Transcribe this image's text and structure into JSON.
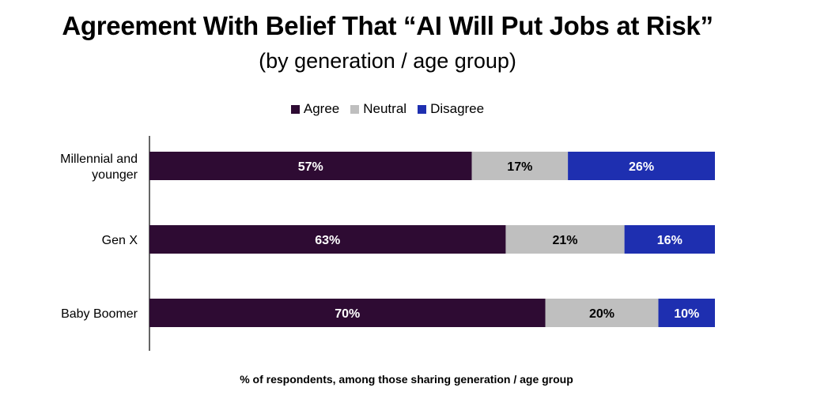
{
  "chart_data": {
    "type": "bar",
    "orientation": "horizontal",
    "stacked": true,
    "title": "Agreement With Belief That “AI Will Put Jobs at Risk”",
    "subtitle": "(by generation / age group)",
    "xlabel": "% of respondents, among those sharing generation / age group",
    "ylabel": "",
    "legend_position": "top",
    "categories": [
      "Millennial and younger",
      "Gen X",
      "Baby Boomer"
    ],
    "category_lines": [
      [
        "Millennial and",
        "younger"
      ],
      [
        "Gen X"
      ],
      [
        "Baby Boomer"
      ]
    ],
    "xlim": [
      0,
      100
    ],
    "series": [
      {
        "name": "Agree",
        "color": "#2e0b33",
        "label_color": "#ffffff",
        "values": [
          57,
          63,
          70
        ],
        "labels": [
          "57%",
          "63%",
          "70%"
        ]
      },
      {
        "name": "Neutral",
        "color": "#bfbfbf",
        "label_color": "#000000",
        "values": [
          17,
          21,
          20
        ],
        "labels": [
          "17%",
          "21%",
          "20%"
        ]
      },
      {
        "name": "Disagree",
        "color": "#1e2fb0",
        "label_color": "#ffffff",
        "values": [
          26,
          16,
          10
        ],
        "labels": [
          "26%",
          "16%",
          "10%"
        ]
      }
    ]
  }
}
